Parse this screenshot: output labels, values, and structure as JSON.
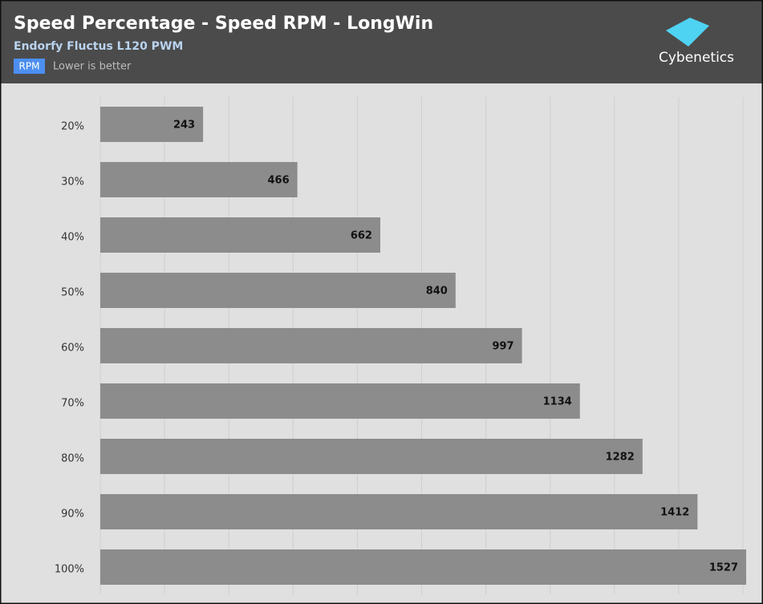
{
  "chart_data": {
    "type": "hbar",
    "title": "Speed Percentage - Speed RPM - LongWin",
    "subtitle": "Endorfy Fluctus L120 PWM",
    "unit": "RPM",
    "note": "Lower is better",
    "brand": "Cybenetics",
    "categories": [
      "20%",
      "30%",
      "40%",
      "50%",
      "60%",
      "70%",
      "80%",
      "90%",
      "100%"
    ],
    "values": [
      243,
      466,
      662,
      840,
      997,
      1134,
      1282,
      1412,
      1527
    ],
    "color": "#8c8c8c",
    "xlim": [
      0,
      1527
    ],
    "grid": true
  }
}
